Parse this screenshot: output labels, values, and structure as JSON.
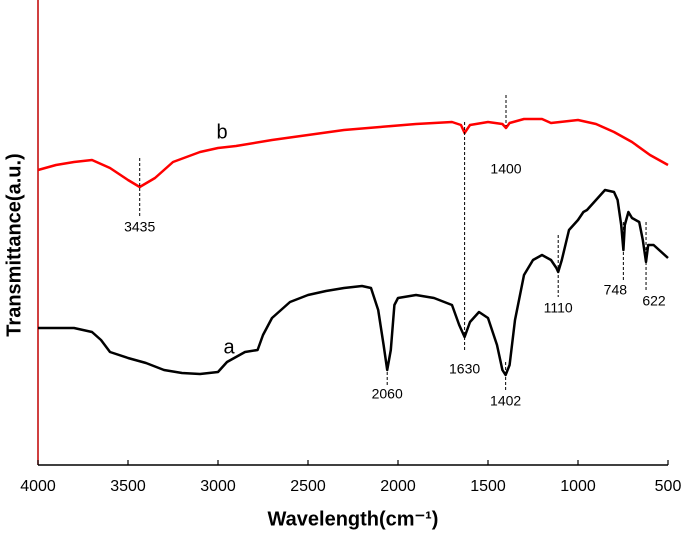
{
  "chart_data": {
    "type": "line",
    "x_label": "Wavelength(cm⁻¹)",
    "y_label": "Transmittance(a.u.)",
    "xlim": [
      4000,
      500
    ],
    "xticks": [
      4000,
      3500,
      3000,
      2500,
      2000,
      1500,
      1000,
      500
    ],
    "ylim": [
      0,
      465
    ],
    "series": [
      {
        "name": "b",
        "color": "#ff0000",
        "x": [
          4000,
          3900,
          3800,
          3700,
          3600,
          3500,
          3435,
          3350,
          3250,
          3100,
          3000,
          2900,
          2700,
          2500,
          2300,
          2100,
          1900,
          1700,
          1650,
          1630,
          1600,
          1500,
          1420,
          1400,
          1380,
          1300,
          1200,
          1150,
          1100,
          1000,
          900,
          800,
          700,
          600,
          500
        ],
        "values": [
          295,
          300,
          303,
          305,
          297,
          285,
          278,
          287,
          303,
          313,
          317,
          319,
          325,
          330,
          335,
          338,
          341,
          343,
          340,
          332,
          340,
          343,
          341,
          337,
          342,
          346,
          346,
          342,
          343,
          345,
          341,
          333,
          323,
          310,
          300
        ]
      },
      {
        "name": "a",
        "color": "#000000",
        "x": [
          4000,
          3800,
          3700,
          3650,
          3600,
          3500,
          3400,
          3300,
          3200,
          3100,
          3000,
          2950,
          2850,
          2780,
          2750,
          2700,
          2600,
          2500,
          2400,
          2300,
          2200,
          2150,
          2110,
          2080,
          2060,
          2040,
          2020,
          2000,
          1900,
          1800,
          1700,
          1660,
          1630,
          1600,
          1550,
          1500,
          1450,
          1420,
          1402,
          1380,
          1350,
          1300,
          1250,
          1200,
          1150,
          1120,
          1110,
          1090,
          1050,
          1000,
          970,
          950,
          900,
          850,
          800,
          780,
          760,
          748,
          740,
          720,
          700,
          660,
          640,
          622,
          610,
          580,
          500
        ],
        "values": [
          137,
          137,
          133,
          125,
          113,
          107,
          102,
          95,
          92,
          91,
          93,
          103,
          113,
          115,
          130,
          147,
          163,
          170,
          174,
          177,
          179,
          177,
          155,
          120,
          95,
          115,
          160,
          167,
          170,
          167,
          160,
          140,
          128,
          143,
          153,
          147,
          120,
          95,
          90,
          100,
          145,
          190,
          205,
          210,
          205,
          197,
          193,
          205,
          235,
          245,
          253,
          255,
          265,
          275,
          273,
          265,
          240,
          215,
          240,
          253,
          247,
          243,
          225,
          203,
          220,
          220,
          207
        ]
      }
    ],
    "annotations": [
      {
        "label": "3435",
        "x": 3435
      },
      {
        "label": "1400",
        "x": 1400
      },
      {
        "label": "2060",
        "x": 2060
      },
      {
        "label": "1630",
        "x": 1630
      },
      {
        "label": "1402",
        "x": 1402
      },
      {
        "label": "1110",
        "x": 1110
      },
      {
        "label": "748",
        "x": 748
      },
      {
        "label": "622",
        "x": 622
      }
    ]
  }
}
